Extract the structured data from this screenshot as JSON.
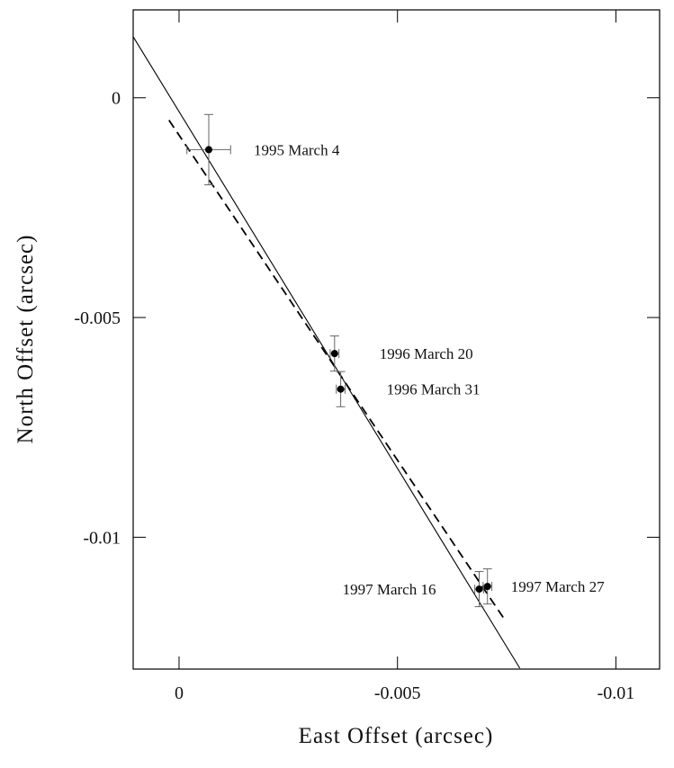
{
  "chart_data": {
    "type": "scatter",
    "xlabel": "East Offset (arcsec)",
    "ylabel": "North Offset (arcsec)",
    "xlim": [
      0.00105,
      -0.011
    ],
    "ylim": [
      -0.013,
      0.002
    ],
    "xticks": [
      0,
      -0.005,
      -0.01
    ],
    "yticks": [
      0,
      -0.005,
      -0.01
    ],
    "series": [
      {
        "color": "#000000",
        "labels": [
          "1995 March 4",
          "1996 March 20",
          "1996 March 31",
          "1997 March 16",
          "1997 March 27"
        ],
        "x": [
          -0.00068,
          -0.00356,
          -0.0037,
          -0.00687,
          -0.00706
        ],
        "y": [
          -0.00118,
          -0.00582,
          -0.00663,
          -0.01118,
          -0.01112
        ],
        "xerr": [
          0.0005,
          0.0001,
          0.0001,
          0.0001,
          0.0001
        ],
        "yerr": [
          0.0008,
          0.0004,
          0.0004,
          0.0004,
          0.0004
        ]
      }
    ],
    "lines": [
      {
        "style": "solid",
        "x": [
          0.00105,
          -0.0078
        ],
        "y": [
          0.00139,
          -0.01298
        ]
      },
      {
        "style": "dashed",
        "x": [
          0.00023,
          -0.00747
        ],
        "y": [
          -0.00051,
          -0.0119
        ]
      }
    ]
  }
}
